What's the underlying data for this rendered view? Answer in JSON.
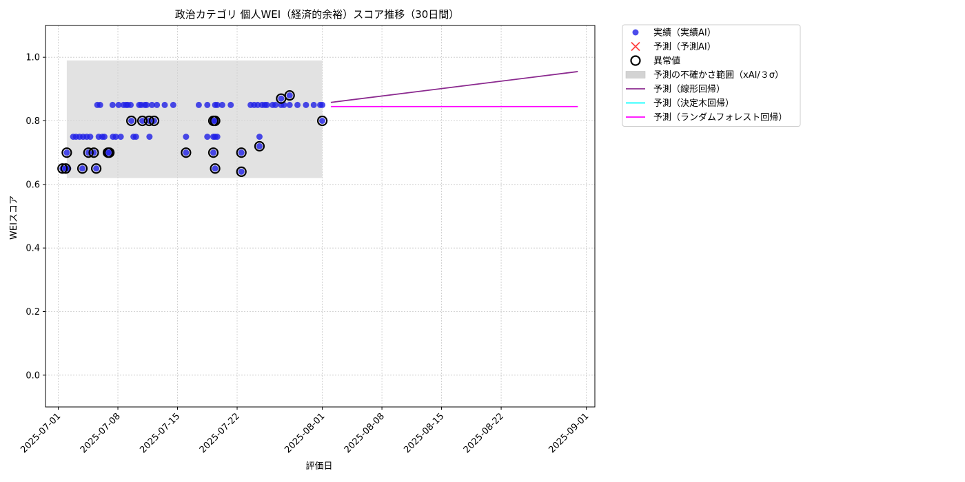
{
  "chart_data": {
    "type": "scatter",
    "title": "政治カテゴリ 個人WEI（経済的余裕）スコア推移（30日間）",
    "xlabel": "評価日",
    "ylabel": "WEIスコア",
    "xlim": [
      "2025-06-29T12:00",
      "2025-09-02T00:00"
    ],
    "ylim": [
      -0.1,
      1.1
    ],
    "y_ticks": [
      0.0,
      0.2,
      0.4,
      0.6,
      0.8,
      1.0
    ],
    "y_tick_labels": [
      "0.0",
      "0.2",
      "0.4",
      "0.6",
      "0.8",
      "1.0"
    ],
    "x_ticks": [
      "2025-07-01",
      "2025-07-08",
      "2025-07-15",
      "2025-07-22",
      "2025-08-01",
      "2025-08-08",
      "2025-08-15",
      "2025-08-22",
      "2025-09-01"
    ],
    "grid": true,
    "legend_position": "outside-right",
    "legend": [
      {
        "label": "実績（実績AI）",
        "kind": "dot",
        "color": "#1f1fe6"
      },
      {
        "label": "予測（予測AI）",
        "kind": "cross",
        "color": "#ff4040"
      },
      {
        "label": "異常値",
        "kind": "ring",
        "color": "#000000"
      },
      {
        "label": "予測の不確かさ範囲（xAI/３σ）",
        "kind": "band",
        "color": "#d3d3d3"
      },
      {
        "label": "予測（線形回帰）",
        "kind": "line",
        "color": "#8b2a8f"
      },
      {
        "label": "予測（決定木回帰）",
        "kind": "line",
        "color": "#00ffff"
      },
      {
        "label": "予測（ランダムフォレスト回帰）",
        "kind": "line",
        "color": "#ff00ff"
      }
    ],
    "uncertainty_band": {
      "x_start": "2025-07-02T00:00",
      "x_end": "2025-08-01T00:00",
      "y_low": 0.62,
      "y_high": 0.99
    },
    "series": [
      {
        "name": "実績（実績AI）",
        "type": "scatter",
        "color": "#1f1fe6",
        "points": [
          {
            "x": "2025-07-01T12:00",
            "y": 0.65
          },
          {
            "x": "2025-07-01T21:00",
            "y": 0.65
          },
          {
            "x": "2025-07-02T00:00",
            "y": 0.7
          },
          {
            "x": "2025-07-02T04:00",
            "y": 0.65
          },
          {
            "x": "2025-07-02T18:00",
            "y": 0.75
          },
          {
            "x": "2025-07-03T02:00",
            "y": 0.75
          },
          {
            "x": "2025-07-03T12:00",
            "y": 0.75
          },
          {
            "x": "2025-07-03T22:00",
            "y": 0.75
          },
          {
            "x": "2025-07-03T20:00",
            "y": 0.65
          },
          {
            "x": "2025-07-04T08:00",
            "y": 0.75
          },
          {
            "x": "2025-07-04T13:00",
            "y": 0.7
          },
          {
            "x": "2025-07-04T18:00",
            "y": 0.75
          },
          {
            "x": "2025-07-05T04:00",
            "y": 0.7
          },
          {
            "x": "2025-07-05T18:00",
            "y": 0.75
          },
          {
            "x": "2025-07-05T11:00",
            "y": 0.65
          },
          {
            "x": "2025-07-05T14:00",
            "y": 0.85
          },
          {
            "x": "2025-07-05T22:00",
            "y": 0.85
          },
          {
            "x": "2025-07-06T04:00",
            "y": 0.75
          },
          {
            "x": "2025-07-06T10:00",
            "y": 0.75
          },
          {
            "x": "2025-07-06T20:00",
            "y": 0.7
          },
          {
            "x": "2025-07-07T00:00",
            "y": 0.7
          },
          {
            "x": "2025-07-07T09:00",
            "y": 0.85
          },
          {
            "x": "2025-07-07T10:00",
            "y": 0.75
          },
          {
            "x": "2025-07-07T18:00",
            "y": 0.75
          },
          {
            "x": "2025-07-08T02:00",
            "y": 0.85
          },
          {
            "x": "2025-07-08T08:00",
            "y": 0.75
          },
          {
            "x": "2025-07-08T16:00",
            "y": 0.85
          },
          {
            "x": "2025-07-08T23:00",
            "y": 0.85
          },
          {
            "x": "2025-07-09T04:00",
            "y": 0.85
          },
          {
            "x": "2025-07-09T12:00",
            "y": 0.85
          },
          {
            "x": "2025-07-09T14:00",
            "y": 0.8
          },
          {
            "x": "2025-07-09T20:00",
            "y": 0.75
          },
          {
            "x": "2025-07-10T03:00",
            "y": 0.75
          },
          {
            "x": "2025-07-10T12:00",
            "y": 0.85
          },
          {
            "x": "2025-07-10T18:00",
            "y": 0.85
          },
          {
            "x": "2025-07-10T21:00",
            "y": 0.8
          },
          {
            "x": "2025-07-11T04:00",
            "y": 0.85
          },
          {
            "x": "2025-07-11T09:00",
            "y": 0.85
          },
          {
            "x": "2025-07-11T16:00",
            "y": 0.8
          },
          {
            "x": "2025-07-11T17:00",
            "y": 0.75
          },
          {
            "x": "2025-07-12T00:00",
            "y": 0.85
          },
          {
            "x": "2025-07-12T06:00",
            "y": 0.8
          },
          {
            "x": "2025-07-12T14:00",
            "y": 0.85
          },
          {
            "x": "2025-07-13T12:00",
            "y": 0.85
          },
          {
            "x": "2025-07-14T12:00",
            "y": 0.85
          },
          {
            "x": "2025-07-16T00:00",
            "y": 0.7
          },
          {
            "x": "2025-07-16T00:00",
            "y": 0.75
          },
          {
            "x": "2025-07-17T12:00",
            "y": 0.85
          },
          {
            "x": "2025-07-18T12:00",
            "y": 0.75
          },
          {
            "x": "2025-07-18T12:00",
            "y": 0.85
          },
          {
            "x": "2025-07-19T05:00",
            "y": 0.7
          },
          {
            "x": "2025-07-19T05:00",
            "y": 0.8
          },
          {
            "x": "2025-07-19T05:00",
            "y": 0.75
          },
          {
            "x": "2025-07-19T10:00",
            "y": 0.8
          },
          {
            "x": "2025-07-19T10:00",
            "y": 0.65
          },
          {
            "x": "2025-07-19T10:00",
            "y": 0.75
          },
          {
            "x": "2025-07-19T10:00",
            "y": 0.85
          },
          {
            "x": "2025-07-19T16:00",
            "y": 0.75
          },
          {
            "x": "2025-07-19T16:00",
            "y": 0.85
          },
          {
            "x": "2025-07-20T06:00",
            "y": 0.85
          },
          {
            "x": "2025-07-21T06:00",
            "y": 0.85
          },
          {
            "x": "2025-07-22T12:00",
            "y": 0.7
          },
          {
            "x": "2025-07-22T12:00",
            "y": 0.64
          },
          {
            "x": "2025-07-23T14:00",
            "y": 0.85
          },
          {
            "x": "2025-07-24T00:00",
            "y": 0.85
          },
          {
            "x": "2025-07-24T10:00",
            "y": 0.85
          },
          {
            "x": "2025-07-24T15:00",
            "y": 0.75
          },
          {
            "x": "2025-07-24T15:00",
            "y": 0.72
          },
          {
            "x": "2025-07-24T22:00",
            "y": 0.85
          },
          {
            "x": "2025-07-25T06:00",
            "y": 0.85
          },
          {
            "x": "2025-07-25T12:00",
            "y": 0.85
          },
          {
            "x": "2025-07-26T04:00",
            "y": 0.85
          },
          {
            "x": "2025-07-26T12:00",
            "y": 0.85
          },
          {
            "x": "2025-07-27T04:00",
            "y": 0.85
          },
          {
            "x": "2025-07-27T04:00",
            "y": 0.87
          },
          {
            "x": "2025-07-27T12:00",
            "y": 0.85
          },
          {
            "x": "2025-07-28T04:00",
            "y": 0.85
          },
          {
            "x": "2025-07-28T04:00",
            "y": 0.88
          },
          {
            "x": "2025-07-29T02:00",
            "y": 0.85
          },
          {
            "x": "2025-07-30T02:00",
            "y": 0.85
          },
          {
            "x": "2025-07-31T00:00",
            "y": 0.85
          },
          {
            "x": "2025-07-31T18:00",
            "y": 0.85
          },
          {
            "x": "2025-08-01T00:00",
            "y": 0.85
          },
          {
            "x": "2025-08-01T00:00",
            "y": 0.8
          }
        ]
      },
      {
        "name": "異常値",
        "type": "ring",
        "color": "#000000",
        "points": [
          {
            "x": "2025-07-01T12:00",
            "y": 0.65
          },
          {
            "x": "2025-07-01T21:00",
            "y": 0.65
          },
          {
            "x": "2025-07-02T00:00",
            "y": 0.7
          },
          {
            "x": "2025-07-03T20:00",
            "y": 0.65
          },
          {
            "x": "2025-07-04T13:00",
            "y": 0.7
          },
          {
            "x": "2025-07-05T04:00",
            "y": 0.7
          },
          {
            "x": "2025-07-05T11:00",
            "y": 0.65
          },
          {
            "x": "2025-07-06T20:00",
            "y": 0.7
          },
          {
            "x": "2025-07-07T00:00",
            "y": 0.7
          },
          {
            "x": "2025-07-09T14:00",
            "y": 0.8
          },
          {
            "x": "2025-07-10T21:00",
            "y": 0.8
          },
          {
            "x": "2025-07-11T16:00",
            "y": 0.8
          },
          {
            "x": "2025-07-12T06:00",
            "y": 0.8
          },
          {
            "x": "2025-07-16T00:00",
            "y": 0.7
          },
          {
            "x": "2025-07-19T05:00",
            "y": 0.7
          },
          {
            "x": "2025-07-19T05:00",
            "y": 0.8
          },
          {
            "x": "2025-07-19T10:00",
            "y": 0.8
          },
          {
            "x": "2025-07-19T10:00",
            "y": 0.65
          },
          {
            "x": "2025-07-22T12:00",
            "y": 0.7
          },
          {
            "x": "2025-07-22T12:00",
            "y": 0.64
          },
          {
            "x": "2025-07-24T15:00",
            "y": 0.72
          },
          {
            "x": "2025-07-27T04:00",
            "y": 0.87
          },
          {
            "x": "2025-07-28T04:00",
            "y": 0.88
          },
          {
            "x": "2025-08-01T00:00",
            "y": 0.8
          }
        ]
      },
      {
        "name": "予測（線形回帰）",
        "type": "line",
        "color": "#8b2a8f",
        "points": [
          {
            "x": "2025-08-02T00:00",
            "y": 0.858
          },
          {
            "x": "2025-08-31T00:00",
            "y": 0.955
          }
        ]
      },
      {
        "name": "予測（ランダムフォレスト回帰）",
        "type": "line",
        "color": "#ff00ff",
        "points": [
          {
            "x": "2025-08-02T00:00",
            "y": 0.845
          },
          {
            "x": "2025-08-31T00:00",
            "y": 0.845
          }
        ]
      }
    ]
  }
}
